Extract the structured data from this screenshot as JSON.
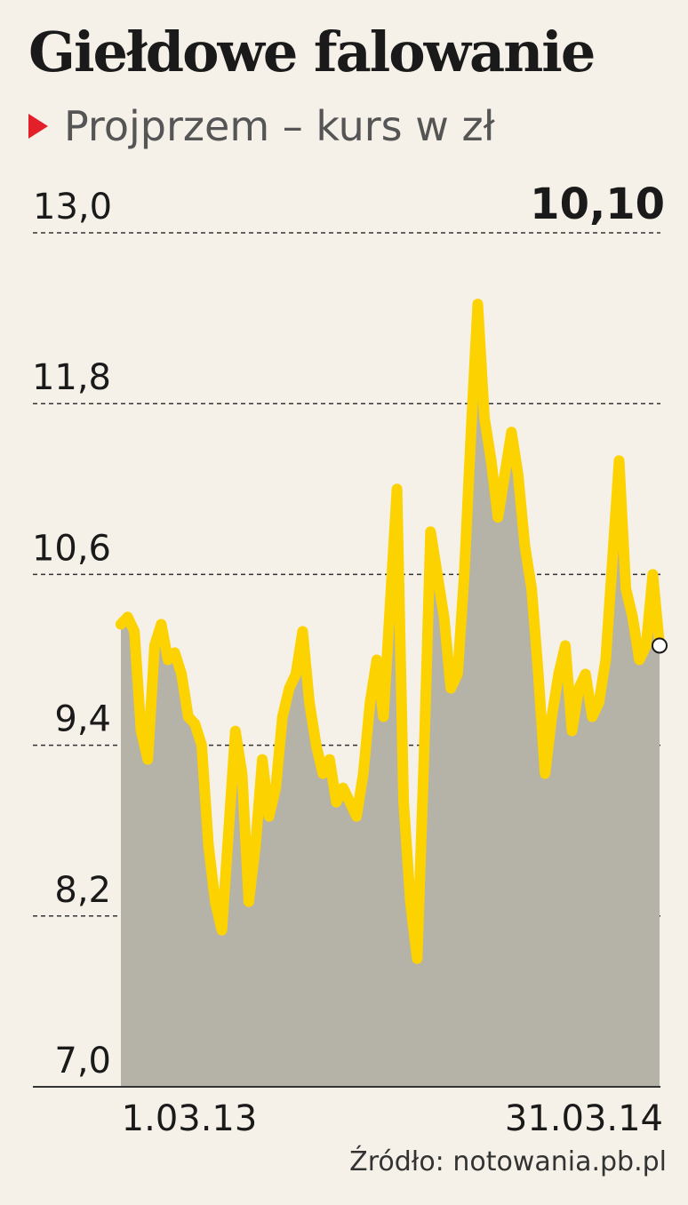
{
  "header": {
    "title": "Giełdowe falowanie",
    "subtitle": "Projprzem – kurs w zł"
  },
  "colors": {
    "background": "#f5f0e8",
    "line": "#fcd200",
    "area": "#b5b2a8",
    "marker": "#e3202a",
    "text": "#1a1a1a"
  },
  "source": "Źródło: notowania.pb.pl",
  "chart_data": {
    "type": "area",
    "title": "Giełdowe falowanie",
    "subtitle": "Projprzem – kurs w zł",
    "ylim": [
      7.0,
      13.0
    ],
    "yticks": [
      13.0,
      11.8,
      10.6,
      9.4,
      8.2,
      7.0
    ],
    "ytick_labels": [
      "13,0",
      "11,8",
      "10,6",
      "9,4",
      "8,2",
      "7,0"
    ],
    "grid": true,
    "start_label": "1.03.13",
    "end_label": "31.03.14",
    "last_value_label": "10,10",
    "series": [
      {
        "values": [
          10.25,
          10.3,
          10.2,
          9.5,
          9.3,
          10.1,
          10.25,
          10.0,
          10.05,
          9.9,
          9.6,
          9.55,
          9.4,
          8.7,
          8.3,
          8.1,
          8.8,
          9.5,
          9.2,
          8.3,
          8.7,
          9.3,
          8.9,
          9.1,
          9.6,
          9.8,
          9.9,
          10.2,
          9.7,
          9.4,
          9.2,
          9.3,
          9.0,
          9.1,
          9.0,
          8.9,
          9.2,
          9.7,
          10.0,
          9.6,
          10.4,
          11.2,
          9.0,
          8.3,
          7.9,
          9.3,
          10.9,
          10.6,
          10.3,
          9.8,
          9.9,
          10.6,
          11.6,
          12.5,
          11.7,
          11.4,
          11.0,
          11.3,
          11.6,
          11.3,
          10.8,
          10.5,
          9.9,
          9.2,
          9.6,
          9.9,
          10.1,
          9.5,
          9.8,
          9.9,
          9.6,
          9.7,
          10.0,
          10.7,
          11.4,
          10.5,
          10.3,
          10.0,
          10.1,
          10.6,
          10.1
        ]
      }
    ]
  }
}
